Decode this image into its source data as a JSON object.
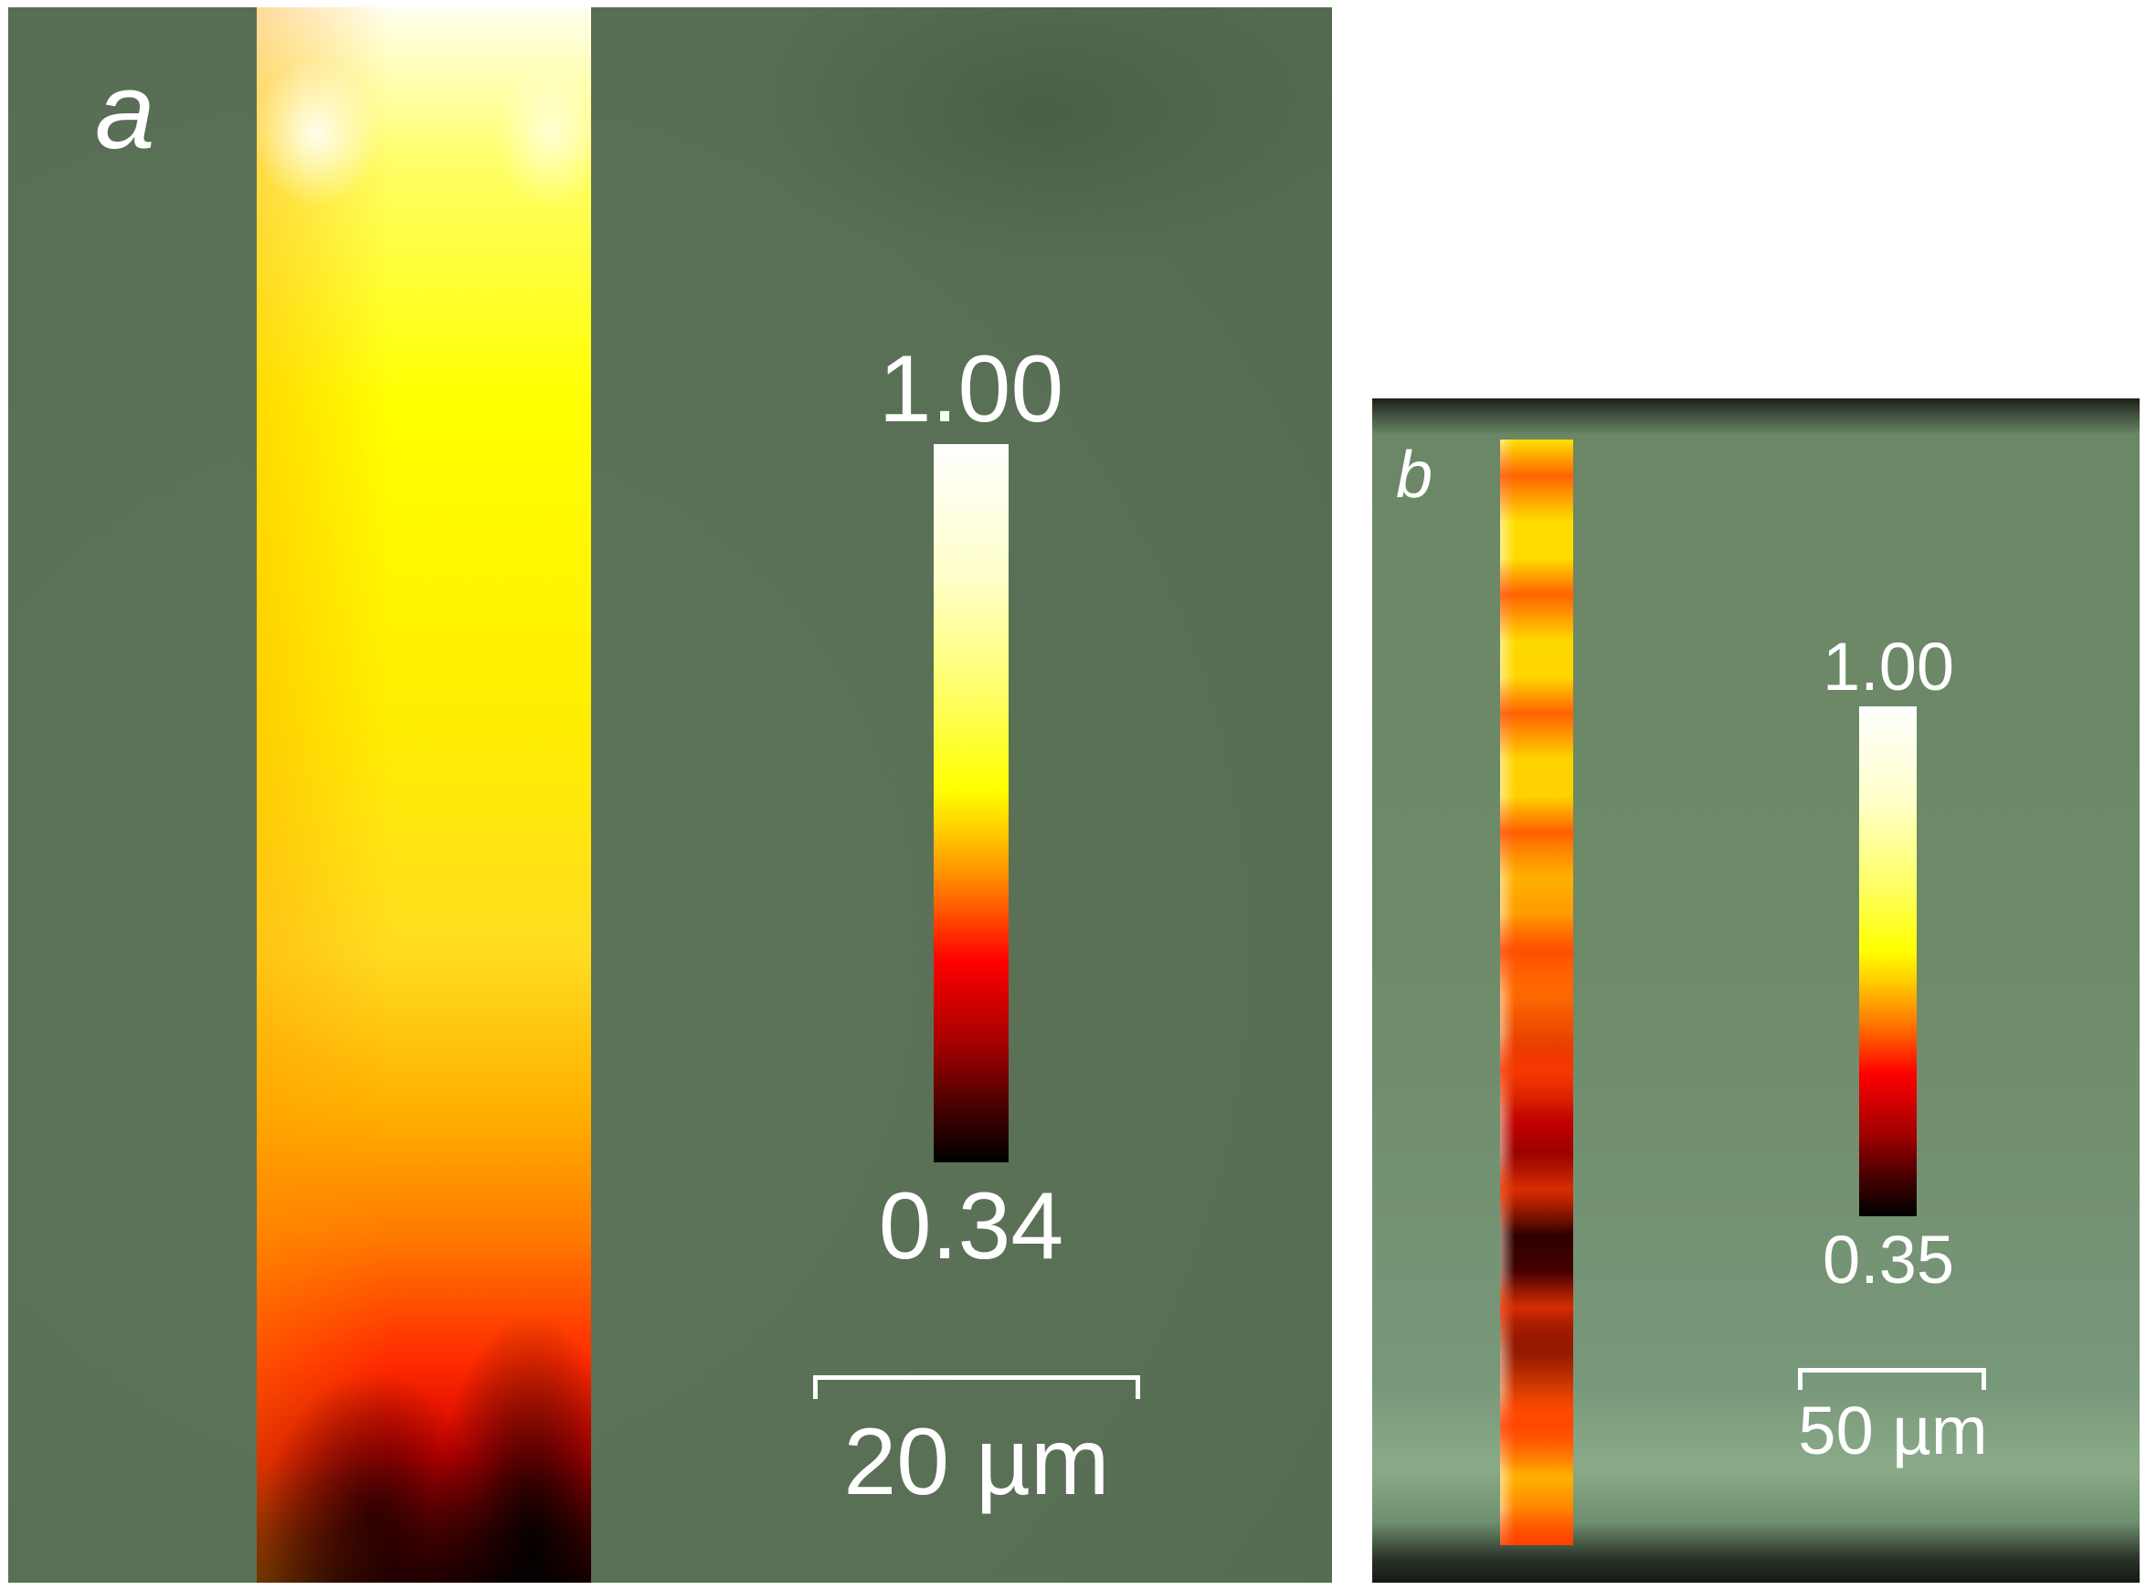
{
  "panel_a": {
    "label": "a",
    "colorbar": {
      "max_label": "1.00",
      "min_label": "0.34"
    },
    "scalebar_label": "20 µm"
  },
  "panel_b": {
    "label": "b",
    "colorbar": {
      "max_label": "1.00",
      "min_label": "0.35"
    },
    "scalebar_label": "50 µm"
  },
  "colors": {
    "background_green": "#5a7056",
    "heat_yellow": "#ffff00",
    "heat_red": "#ff0000",
    "heat_black": "#000000",
    "heat_white": "#ffffff"
  }
}
